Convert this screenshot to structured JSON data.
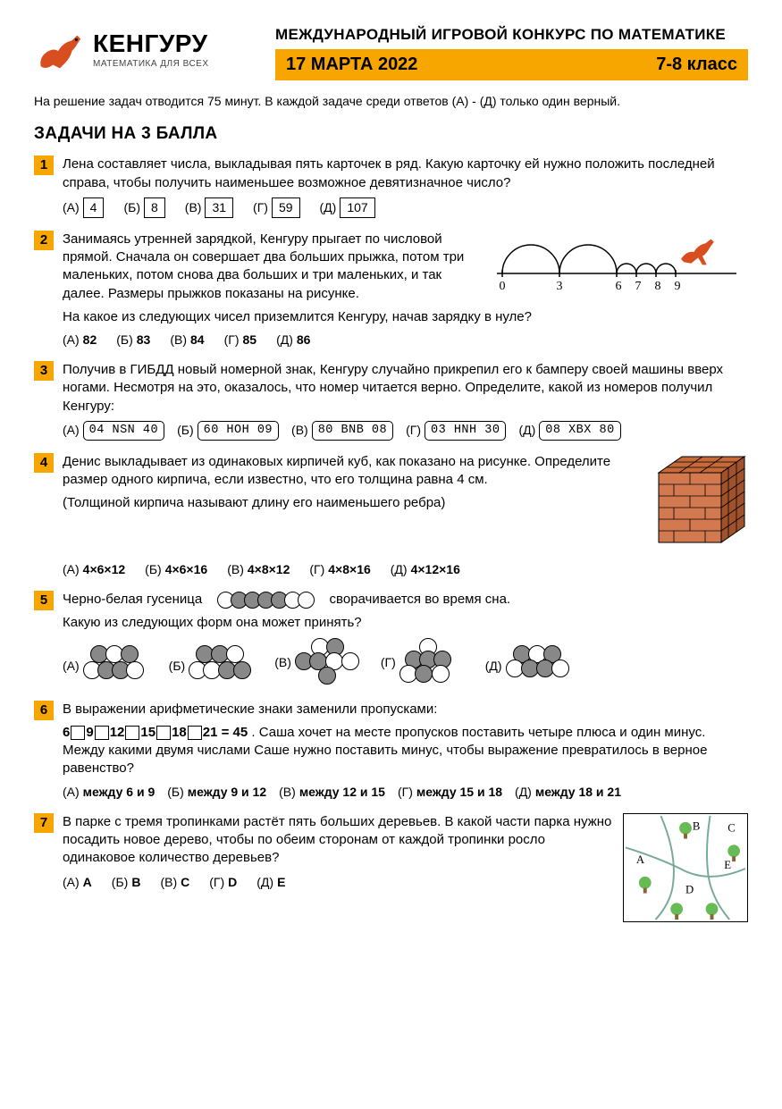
{
  "brand": {
    "title": "КЕНГУРУ",
    "subtitle": "МАТЕМАТИКА ДЛЯ ВСЕХ"
  },
  "contest_title": "МЕЖДУНАРОДНЫЙ ИГРОВОЙ КОНКУРС ПО МАТЕМАТИКЕ",
  "date": "17 МАРТА 2022",
  "grade": "7-8 класс",
  "intro": "На решение задач отводится 75 минут. В каждой задаче среди ответов (А) - (Д) только один верный.",
  "section": "ЗАДАЧИ НА 3 БАЛЛА",
  "labels": {
    "A": "(А)",
    "B": "(Б)",
    "V": "(В)",
    "G": "(Г)",
    "D": "(Д)"
  },
  "colors": {
    "accent": "#f7a600",
    "kangaroo": "#d94e1f",
    "brick": "#c66a3a",
    "brick_dark": "#a0522d"
  },
  "q1": {
    "n": "1",
    "text": "Лена составляет числа, выкладывая пять карточек в ряд. Какую карточку ей нужно положить последней справа, чтобы получить наименьшее возможное девятизначное число?",
    "opts": [
      "4",
      "8",
      "31",
      "59",
      "107"
    ]
  },
  "q2": {
    "n": "2",
    "text1": "Занимаясь утренней зарядкой, Кенгуру прыгает по числовой прямой. Сначала он совершает два больших прыжка, потом три маленьких, потом снова два больших и три маленьких, и так далее. Размеры прыжков показаны на рисунке.",
    "text2": "На какое из следующих чисел приземлится Кенгуру, начав зарядку в нуле?",
    "opts": [
      "82",
      "83",
      "84",
      "85",
      "86"
    ],
    "ticks": [
      "0",
      "3",
      "6",
      "7",
      "8",
      "9"
    ]
  },
  "q3": {
    "n": "3",
    "text": "Получив в ГИБДД новый номерной знак, Кенгуру случайно прикрепил его к бамперу своей машины вверх ногами. Несмотря на это, оказалось, что номер читается верно. Определите, какой из номеров получил Кенгуру:",
    "opts": [
      "04 NSN 40",
      "60 HOH 09",
      "80 BNB 08",
      "03 HNH 30",
      "08 XBX 80"
    ]
  },
  "q4": {
    "n": "4",
    "text": "Денис выкладывает из одинаковых кирпичей куб, как показано на рисунке. Определите размер одного кирпича, если известно, что его толщина равна 4 см.",
    "note": "(Толщиной кирпича называют длину его наименьшего ребра)",
    "opts": [
      "4×6×12",
      "4×6×16",
      "4×8×12",
      "4×8×16",
      "4×12×16"
    ]
  },
  "q5": {
    "n": "5",
    "text1": "Черно-белая гусеница",
    "text2": "сворачивается во время сна.",
    "text3": "Какую из следующих форм она может принять?",
    "line_pattern": [
      "w",
      "d",
      "d",
      "d",
      "d",
      "w",
      "w"
    ],
    "opts": {
      "A": [
        [
          "d",
          8,
          0
        ],
        [
          "w",
          25,
          0
        ],
        [
          "d",
          42,
          0
        ],
        [
          "w",
          0,
          18
        ],
        [
          "d",
          16,
          18
        ],
        [
          "d",
          32,
          18
        ],
        [
          "w",
          48,
          18
        ]
      ],
      "B": [
        [
          "d",
          8,
          0
        ],
        [
          "d",
          25,
          0
        ],
        [
          "w",
          42,
          0
        ],
        [
          "w",
          0,
          18
        ],
        [
          "w",
          16,
          18
        ],
        [
          "d",
          33,
          18
        ],
        [
          "d",
          50,
          18
        ]
      ],
      "V": [
        [
          "w",
          18,
          0
        ],
        [
          "d",
          35,
          0
        ],
        [
          "d",
          0,
          16
        ],
        [
          "d",
          16,
          16
        ],
        [
          "w",
          34,
          16
        ],
        [
          "w",
          52,
          16
        ],
        [
          "d",
          26,
          32
        ]
      ],
      "G": [
        [
          "w",
          22,
          0
        ],
        [
          "d",
          6,
          14
        ],
        [
          "d",
          22,
          14
        ],
        [
          "d",
          38,
          14
        ],
        [
          "w",
          0,
          30
        ],
        [
          "d",
          17,
          30
        ],
        [
          "w",
          36,
          30
        ]
      ],
      "D": [
        [
          "d",
          8,
          0
        ],
        [
          "w",
          25,
          0
        ],
        [
          "d",
          42,
          0
        ],
        [
          "w",
          0,
          16
        ],
        [
          "d",
          17,
          16
        ],
        [
          "d",
          34,
          16
        ],
        [
          "w",
          51,
          16
        ]
      ]
    }
  },
  "q6": {
    "n": "6",
    "text1": "В выражении арифметические знаки заменили пропусками:",
    "eq_nums": [
      "6",
      "9",
      "12",
      "15",
      "18",
      "21"
    ],
    "eq_tail": " = 45",
    "text2": ". Саша хочет на месте пропусков поставить четыре плюса и один минус. Между какими двумя числами Саше нужно поставить минус, чтобы выражение превратилось в верное равенство?",
    "opts": [
      "между 6 и 9",
      "между 9 и 12",
      "между 12 и 15",
      "между 15 и 18",
      "между 18 и 21"
    ]
  },
  "q7": {
    "n": "7",
    "text": "В парке с тремя тропинками растёт пять больших деревьев. В какой части парка нужно посадить новое дерево, чтобы по обеим сторонам от каждой тропинки росло одинаковое количество деревьев?",
    "opts": [
      "A",
      "B",
      "C",
      "D",
      "E"
    ],
    "regions": [
      "A",
      "B",
      "C",
      "D",
      "E"
    ]
  }
}
